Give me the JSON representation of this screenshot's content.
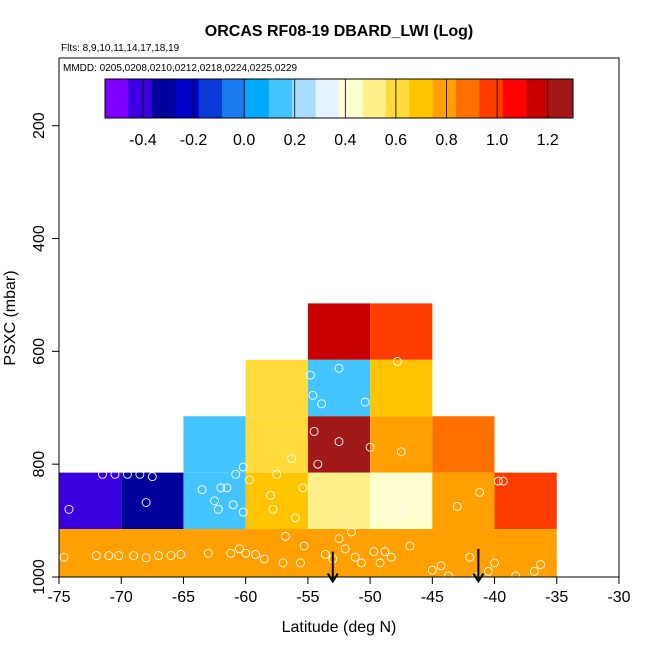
{
  "chart_data": {
    "type": "heatmap",
    "title": "ORCAS RF08-19 DBARD_LWI (Log)",
    "subtitle_flights": "Flts: 8,9,10,11,14,17,18,19",
    "subtitle_dates": "MMDD: 0205,0208,0210,0212,0218,0224,0225,0229",
    "xlabel": "Latitude (deg N)",
    "ylabel": "PSXC (mbar)",
    "xlim": [
      -75,
      -30
    ],
    "ylim": [
      1000,
      80
    ],
    "x_ticks": [
      -75,
      -70,
      -65,
      -60,
      -55,
      -50,
      -45,
      -40,
      -35,
      -30
    ],
    "x_tick_labels": [
      "-75",
      "-70",
      "-65",
      "-60",
      "-55",
      "-50",
      "-45",
      "-40",
      "-35",
      "-30"
    ],
    "y_ticks": [
      200,
      400,
      600,
      800,
      1000
    ],
    "y_tick_labels": [
      "200",
      "400",
      "600",
      "800",
      "1000"
    ],
    "colorbar": {
      "range": [
        -0.55,
        1.3
      ],
      "ticks": [
        -0.4,
        -0.2,
        0.0,
        0.2,
        0.4,
        0.6,
        0.8,
        1.0,
        1.2
      ],
      "tick_labels": [
        "-0.4",
        "-0.2",
        "0.0",
        "0.2",
        "0.4",
        "0.6",
        "0.8",
        "1.0",
        "1.2"
      ],
      "colors": [
        "#7f00ff",
        "#3a00e0",
        "#00009a",
        "#0000c8",
        "#0a3ad8",
        "#1a7af0",
        "#00aaff",
        "#44c4ff",
        "#a8dcff",
        "#e6f4ff",
        "#ffffd2",
        "#fff08c",
        "#ffdc3c",
        "#ffc400",
        "#ffa000",
        "#ff7000",
        "#ff3c00",
        "#ff0000",
        "#c80000",
        "#a01818"
      ]
    },
    "cells": [
      {
        "x0": -75,
        "x1": -70,
        "p0": 815,
        "p1": 915,
        "value": -0.38
      },
      {
        "x0": -70,
        "x1": -65,
        "p0": 815,
        "p1": 915,
        "value": -0.32
      },
      {
        "x0": -65,
        "x1": -60,
        "p0": 715,
        "p1": 815,
        "value": 0.1
      },
      {
        "x0": -65,
        "x1": -60,
        "p0": 815,
        "p1": 915,
        "value": 0.15
      },
      {
        "x0": -60,
        "x1": -55,
        "p0": 615,
        "p1": 715,
        "value": 0.62
      },
      {
        "x0": -60,
        "x1": -55,
        "p0": 715,
        "p1": 815,
        "value": 0.65
      },
      {
        "x0": -60,
        "x1": -55,
        "p0": 815,
        "p1": 915,
        "value": 0.68
      },
      {
        "x0": -55,
        "x1": -50,
        "p0": 515,
        "p1": 615,
        "value": 1.15
      },
      {
        "x0": -55,
        "x1": -50,
        "p0": 615,
        "p1": 715,
        "value": 0.16
      },
      {
        "x0": -55,
        "x1": -50,
        "p0": 715,
        "p1": 815,
        "value": 1.25
      },
      {
        "x0": -55,
        "x1": -50,
        "p0": 815,
        "p1": 915,
        "value": 0.5
      },
      {
        "x0": -50,
        "x1": -45,
        "p0": 515,
        "p1": 615,
        "value": 0.97
      },
      {
        "x0": -50,
        "x1": -45,
        "p0": 615,
        "p1": 715,
        "value": 0.7
      },
      {
        "x0": -50,
        "x1": -45,
        "p0": 715,
        "p1": 815,
        "value": 0.83
      },
      {
        "x0": -50,
        "x1": -45,
        "p0": 815,
        "p1": 915,
        "value": 0.46
      },
      {
        "x0": -45,
        "x1": -40,
        "p0": 715,
        "p1": 815,
        "value": 0.85
      },
      {
        "x0": -45,
        "x1": -40,
        "p0": 815,
        "p1": 915,
        "value": 0.8
      },
      {
        "x0": -40,
        "x1": -35,
        "p0": 815,
        "p1": 915,
        "value": 1.0
      },
      {
        "x0": -75,
        "x1": -35,
        "p0": 915,
        "p1": 1010,
        "value": 0.76
      }
    ],
    "points": [
      [
        -74.6,
        965
      ],
      [
        -74.2,
        880
      ],
      [
        -72,
        962
      ],
      [
        -71.5,
        818
      ],
      [
        -71,
        962
      ],
      [
        -70.5,
        818
      ],
      [
        -70.2,
        962
      ],
      [
        -69.5,
        818
      ],
      [
        -69,
        962
      ],
      [
        -68.5,
        818
      ],
      [
        -68,
        868
      ],
      [
        -68,
        966
      ],
      [
        -67.5,
        822
      ],
      [
        -67,
        962
      ],
      [
        -66,
        962
      ],
      [
        -65.2,
        960
      ],
      [
        -63.5,
        845
      ],
      [
        -63,
        958
      ],
      [
        -62.5,
        865
      ],
      [
        -62.2,
        880
      ],
      [
        -62,
        842
      ],
      [
        -61.5,
        842
      ],
      [
        -61.2,
        958
      ],
      [
        -61,
        872
      ],
      [
        -60.5,
        950
      ],
      [
        -60.2,
        885
      ],
      [
        -60.8,
        818
      ],
      [
        -60.2,
        805
      ],
      [
        -59.7,
        828
      ],
      [
        -60,
        958
      ],
      [
        -59.2,
        960
      ],
      [
        -58.5,
        968
      ],
      [
        -58,
        855
      ],
      [
        -57.8,
        880
      ],
      [
        -57,
        975
      ],
      [
        -57.5,
        818
      ],
      [
        -56.8,
        928
      ],
      [
        -56.3,
        790
      ],
      [
        -56,
        895
      ],
      [
        -55.6,
        975
      ],
      [
        -55.4,
        842
      ],
      [
        -55.3,
        945
      ],
      [
        -55.5,
        530
      ],
      [
        -54.8,
        642
      ],
      [
        -54.6,
        678
      ],
      [
        -54.5,
        742
      ],
      [
        -54.2,
        800
      ],
      [
        -53.9,
        693
      ],
      [
        -53.6,
        960
      ],
      [
        -53,
        968
      ],
      [
        -52.5,
        630
      ],
      [
        -52.5,
        760
      ],
      [
        -52.5,
        932
      ],
      [
        -52,
        950
      ],
      [
        -51.5,
        920
      ],
      [
        -51.2,
        965
      ],
      [
        -50.7,
        975
      ],
      [
        -50.4,
        690
      ],
      [
        -50,
        770
      ],
      [
        -49.7,
        955
      ],
      [
        -49.2,
        975
      ],
      [
        -48.8,
        955
      ],
      [
        -48.3,
        965
      ],
      [
        -47.8,
        618
      ],
      [
        -47.5,
        778
      ],
      [
        -47.2,
        882
      ],
      [
        -46.8,
        945
      ],
      [
        -45,
        988
      ],
      [
        -44.3,
        980
      ],
      [
        -43.7,
        998
      ],
      [
        -43,
        875
      ],
      [
        -42,
        965
      ],
      [
        -41.5,
        1000
      ],
      [
        -41.2,
        850
      ],
      [
        -40.5,
        990
      ],
      [
        -40,
        975
      ],
      [
        -39.7,
        830
      ],
      [
        -39.3,
        830
      ],
      [
        -38.3,
        998
      ],
      [
        -36.8,
        990
      ],
      [
        -36.3,
        978
      ]
    ],
    "markers": [
      {
        "lat": -53,
        "p_top": 955,
        "p_bottom": 1008
      },
      {
        "lat": -41.3,
        "p_top": 950,
        "p_bottom": 1008
      }
    ]
  }
}
